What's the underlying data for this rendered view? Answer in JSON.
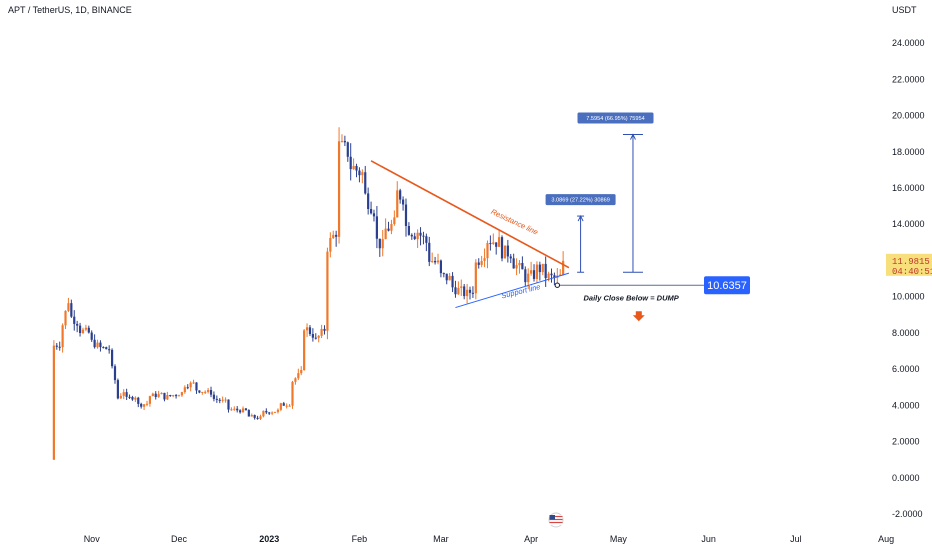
{
  "header": {
    "symbol_line": "APT / TetherUS, 1D, BINANCE",
    "currency": "USDT"
  },
  "colors": {
    "up": "#f0782a",
    "down": "#2a3f8e",
    "resistance": "#e8581c",
    "support": "#2962ff",
    "measure": "#2f4fb4",
    "level_box": "#2962ff",
    "last_price": "#f7e07b"
  },
  "chart_data": {
    "type": "candlestick",
    "title": "APT / TetherUS, 1D, BINANCE",
    "y_unit": "USDT",
    "ylim": [
      -2.6,
      26.1
    ],
    "y_ticks": [
      "24.0000",
      "22.0000",
      "20.0000",
      "18.0000",
      "16.0000",
      "14.0000",
      "12.0000",
      "10.0000",
      "8.0000",
      "6.0000",
      "4.0000",
      "2.0000",
      "0.0000",
      "-2.0000"
    ],
    "x_ticks": [
      "Nov",
      "Dec",
      "2023",
      "Feb",
      "Mar",
      "Apr",
      "May",
      "Jun",
      "Jul",
      "Aug"
    ],
    "last_price": "11.9815",
    "countdown": "04:40:51",
    "level_value": "10.6357",
    "level_price": 10.6357,
    "date_range": [
      "2022-10-19",
      "2023-04-12"
    ],
    "price_path": [
      [
        "2022-10-19",
        1.0,
        7.3
      ],
      [
        "2022-10-21",
        7.4,
        7.8
      ],
      [
        "2022-10-24",
        9.8,
        9.0
      ],
      [
        "2022-10-27",
        8.6,
        8.2
      ],
      [
        "2022-10-31",
        8.0,
        7.6
      ],
      [
        "2022-11-03",
        7.3,
        7.2
      ],
      [
        "2022-11-07",
        7.1,
        6.6
      ],
      [
        "2022-11-09",
        5.4,
        4.2
      ],
      [
        "2022-11-12",
        4.8,
        4.3
      ],
      [
        "2022-11-16",
        4.5,
        4.0
      ],
      [
        "2022-11-20",
        4.1,
        4.5
      ],
      [
        "2022-11-25",
        4.6,
        4.4
      ],
      [
        "2022-12-02",
        4.7,
        5.1
      ],
      [
        "2022-12-06",
        5.2,
        4.9
      ],
      [
        "2022-12-12",
        4.7,
        4.4
      ],
      [
        "2022-12-17",
        4.2,
        3.8
      ],
      [
        "2022-12-24",
        3.7,
        3.4
      ],
      [
        "2022-12-29",
        3.3,
        3.6
      ],
      [
        "2023-01-04",
        3.7,
        4.0
      ],
      [
        "2023-01-08",
        4.1,
        5.2
      ],
      [
        "2023-01-12",
        5.8,
        8.5
      ],
      [
        "2023-01-16",
        7.9,
        7.4
      ],
      [
        "2023-01-20",
        8.2,
        12.5
      ],
      [
        "2023-01-24",
        13.6,
        18.4
      ],
      [
        "2023-01-28",
        18.0,
        17.3
      ],
      [
        "2023-02-02",
        16.8,
        15.8
      ],
      [
        "2023-02-06",
        14.8,
        13.2
      ],
      [
        "2023-02-09",
        12.8,
        13.6
      ],
      [
        "2023-02-13",
        14.0,
        15.8
      ],
      [
        "2023-02-16",
        15.5,
        14.0
      ],
      [
        "2023-02-20",
        13.5,
        13.8
      ],
      [
        "2023-02-24",
        13.0,
        12.2
      ],
      [
        "2023-02-28",
        11.8,
        11.2
      ],
      [
        "2023-03-04",
        11.0,
        10.6
      ],
      [
        "2023-03-09",
        10.2,
        10.0
      ],
      [
        "2023-03-12",
        10.4,
        11.6
      ],
      [
        "2023-03-16",
        12.5,
        13.2
      ],
      [
        "2023-03-21",
        13.0,
        12.5
      ],
      [
        "2023-03-25",
        12.4,
        12.0
      ],
      [
        "2023-03-29",
        11.4,
        11.0
      ],
      [
        "2023-04-02",
        11.2,
        11.6
      ],
      [
        "2023-04-05",
        11.5,
        11.2
      ],
      [
        "2023-04-09",
        11.0,
        10.9
      ],
      [
        "2023-04-12",
        11.2,
        11.98
      ]
    ],
    "annotations": {
      "resistance_label": "Resistance line",
      "support_label": "Support line",
      "daily_close_note": "Daily Close Below = DUMP",
      "measure_small": "3.0869 (27.22%) 30869",
      "measure_large": "7.5954 (66.95%) 75954"
    },
    "grid": false,
    "legend": "none"
  }
}
